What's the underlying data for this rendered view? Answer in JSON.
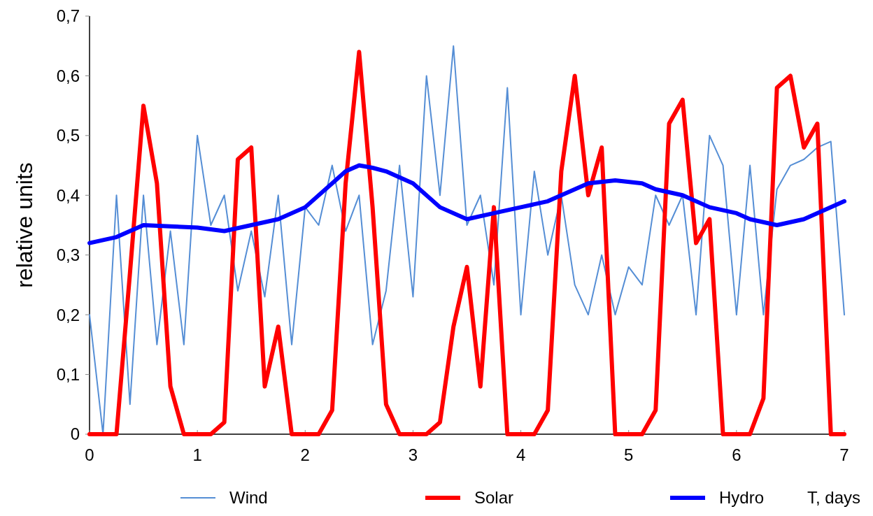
{
  "chart_data": {
    "type": "line",
    "xlabel": "T, days",
    "ylabel": "relative units",
    "x": [
      0,
      0.125,
      0.25,
      0.375,
      0.5,
      0.625,
      0.75,
      0.875,
      1,
      1.125,
      1.25,
      1.375,
      1.5,
      1.625,
      1.75,
      1.875,
      2,
      2.125,
      2.25,
      2.375,
      2.5,
      2.625,
      2.75,
      2.875,
      3,
      3.125,
      3.25,
      3.375,
      3.5,
      3.625,
      3.75,
      3.875,
      4,
      4.125,
      4.25,
      4.375,
      4.5,
      4.625,
      4.75,
      4.875,
      5,
      5.125,
      5.25,
      5.375,
      5.5,
      5.625,
      5.75,
      5.875,
      6,
      6.125,
      6.25,
      6.375,
      6.5,
      6.625,
      6.75,
      6.875,
      7
    ],
    "series": [
      {
        "name": "Wind",
        "color": "#558ed5",
        "values": [
          0.2,
          0,
          0.4,
          0.05,
          0.4,
          0.15,
          0.34,
          0.15,
          0.5,
          0.35,
          0.4,
          0.24,
          0.34,
          0.23,
          0.4,
          0.15,
          0.38,
          0.35,
          0.45,
          0.34,
          0.4,
          0.15,
          0.24,
          0.45,
          0.23,
          0.6,
          0.4,
          0.65,
          0.35,
          0.4,
          0.25,
          0.58,
          0.2,
          0.44,
          0.3,
          0.4,
          0.25,
          0.2,
          0.3,
          0.2,
          0.28,
          0.25,
          0.4,
          0.35,
          0.4,
          0.2,
          0.5,
          0.45,
          0.2,
          0.45,
          0.2,
          0.41,
          0.45,
          0.46,
          0.48,
          0.49,
          0.2
        ]
      },
      {
        "name": "Solar",
        "color": "#ff0000",
        "values": [
          0,
          0,
          0,
          0.27,
          0.55,
          0.42,
          0.08,
          0,
          0,
          0,
          0.02,
          0.46,
          0.48,
          0.08,
          0.18,
          0,
          0,
          0,
          0.04,
          0.42,
          0.64,
          0.38,
          0.05,
          0,
          0,
          0,
          0.02,
          0.18,
          0.28,
          0.08,
          0.38,
          0,
          0,
          0,
          0.04,
          0.44,
          0.6,
          0.4,
          0.48,
          0,
          0,
          0,
          0.04,
          0.52,
          0.56,
          0.32,
          0.36,
          0,
          0,
          0,
          0.06,
          0.58,
          0.6,
          0.48,
          0.52,
          0,
          0
        ]
      },
      {
        "name": "Hydro",
        "color": "#0000ff",
        "x": [
          0,
          0.25,
          0.5,
          0.75,
          1,
          1.25,
          1.5,
          1.75,
          2,
          2.25,
          2.375,
          2.5,
          2.625,
          2.75,
          3,
          3.25,
          3.5,
          3.75,
          4,
          4.25,
          4.5,
          4.625,
          4.875,
          5.125,
          5.25,
          5.5,
          5.75,
          6,
          6.125,
          6.375,
          6.625,
          7
        ],
        "values": [
          0.32,
          0.33,
          0.35,
          0.348,
          0.346,
          0.34,
          0.35,
          0.36,
          0.38,
          0.42,
          0.44,
          0.45,
          0.446,
          0.44,
          0.42,
          0.38,
          0.36,
          0.37,
          0.38,
          0.39,
          0.41,
          0.42,
          0.425,
          0.42,
          0.41,
          0.4,
          0.38,
          0.37,
          0.36,
          0.35,
          0.36,
          0.39
        ]
      }
    ],
    "xlim": [
      0,
      7
    ],
    "xticks": [
      0,
      1,
      2,
      3,
      4,
      5,
      6,
      7
    ],
    "ylim": [
      0,
      0.7
    ],
    "yticks": [
      {
        "value": 0,
        "label": "0"
      },
      {
        "value": 0.1,
        "label": "0,1"
      },
      {
        "value": 0.2,
        "label": "0,2"
      },
      {
        "value": 0.3,
        "label": "0,3"
      },
      {
        "value": 0.4,
        "label": "0,4"
      },
      {
        "value": 0.5,
        "label": "0,5"
      },
      {
        "value": 0.6,
        "label": "0,6"
      },
      {
        "value": 0.7,
        "label": "0,7"
      }
    ],
    "legend": "bottom",
    "grid": false,
    "marker": "none",
    "line_style": "solid"
  }
}
